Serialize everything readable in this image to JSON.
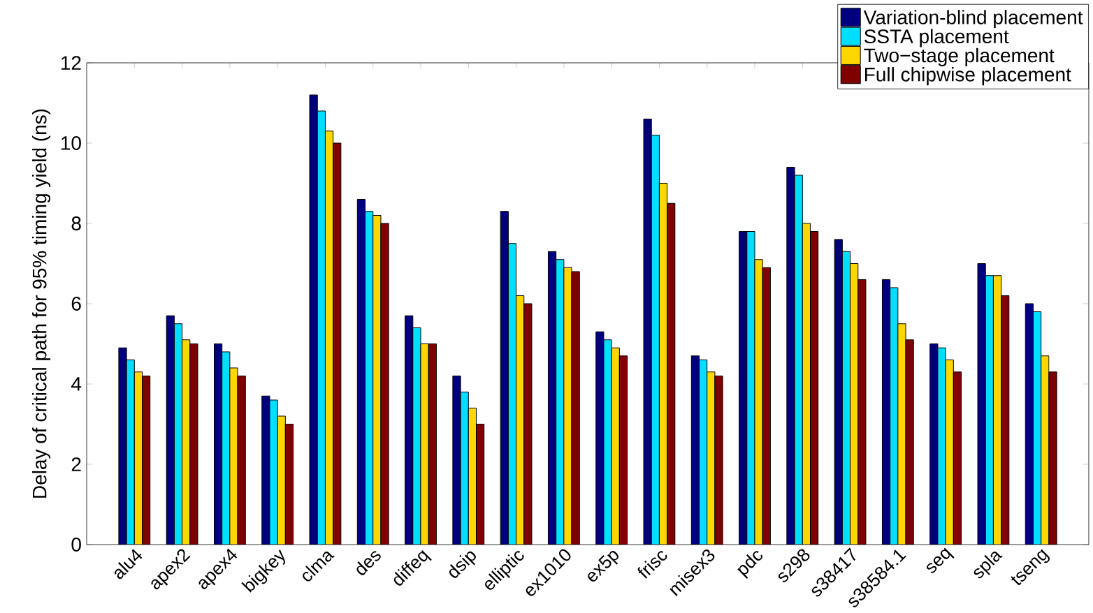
{
  "chart_data": {
    "type": "bar",
    "ylabel": "Delay of critical path for 95% timing yield (ns)",
    "categories": [
      "alu4",
      "apex2",
      "apex4",
      "bigkey",
      "clma",
      "des",
      "diffeq",
      "dsip",
      "elliptic",
      "ex1010",
      "ex5p",
      "frisc",
      "misex3",
      "pdc",
      "s298",
      "s38417",
      "s38584.1",
      "seq",
      "spla",
      "tseng"
    ],
    "series": [
      {
        "name": "Variation-blind placement",
        "color": "#00007f",
        "values": [
          4.9,
          5.7,
          5.0,
          3.7,
          11.2,
          8.6,
          5.7,
          4.2,
          8.3,
          7.3,
          5.3,
          10.6,
          4.7,
          7.8,
          9.4,
          7.6,
          6.6,
          5.0,
          7.0,
          6.0
        ]
      },
      {
        "name": "SSTA placement",
        "color": "#00dfff",
        "values": [
          4.6,
          5.5,
          4.8,
          3.6,
          10.8,
          8.3,
          5.4,
          3.8,
          7.5,
          7.1,
          5.1,
          10.2,
          4.6,
          7.8,
          9.2,
          7.3,
          6.4,
          4.9,
          6.7,
          5.8
        ]
      },
      {
        "name": "Two−stage placement",
        "color": "#ffd700",
        "values": [
          4.3,
          5.1,
          4.4,
          3.2,
          10.3,
          8.2,
          5.0,
          3.4,
          6.2,
          6.9,
          4.9,
          9.0,
          4.3,
          7.1,
          8.0,
          7.0,
          5.5,
          4.6,
          6.7,
          4.7
        ]
      },
      {
        "name": "Full chipwise placement",
        "color": "#7f0000",
        "values": [
          4.2,
          5.0,
          4.2,
          3.0,
          10.0,
          8.0,
          5.0,
          3.0,
          6.0,
          6.8,
          4.7,
          8.5,
          4.2,
          6.9,
          7.8,
          6.6,
          5.1,
          4.3,
          6.2,
          4.3
        ]
      }
    ],
    "ylim": [
      0,
      12
    ],
    "yticks": [
      0,
      2,
      4,
      6,
      8,
      10,
      12
    ],
    "grid": false,
    "legend": "top right"
  }
}
